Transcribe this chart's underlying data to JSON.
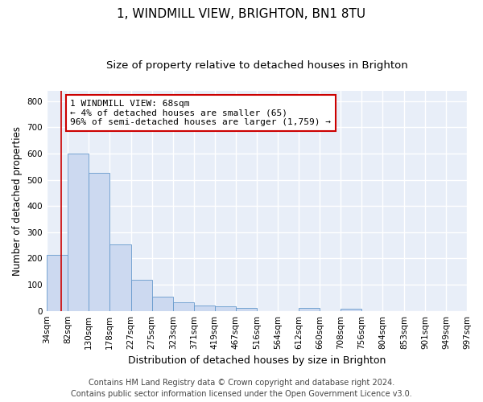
{
  "title": "1, WINDMILL VIEW, BRIGHTON, BN1 8TU",
  "subtitle": "Size of property relative to detached houses in Brighton",
  "xlabel": "Distribution of detached houses by size in Brighton",
  "ylabel": "Number of detached properties",
  "footer_line1": "Contains HM Land Registry data © Crown copyright and database right 2024.",
  "footer_line2": "Contains public sector information licensed under the Open Government Licence v3.0.",
  "bar_color": "#ccd9f0",
  "bar_edge_color": "#6699cc",
  "annotation_line1": "1 WINDMILL VIEW: 68sqm",
  "annotation_line2": "← 4% of detached houses are smaller (65)",
  "annotation_line3": "96% of semi-detached houses are larger (1,759) →",
  "annotation_box_color": "#ffffff",
  "annotation_box_edge_color": "#cc0000",
  "vline_x": 68,
  "vline_color": "#cc0000",
  "bin_edges": [
    34,
    82,
    130,
    178,
    227,
    275,
    323,
    371,
    419,
    467,
    516,
    564,
    612,
    660,
    708,
    756,
    804,
    853,
    901,
    949,
    997
  ],
  "bar_heights": [
    215,
    600,
    525,
    255,
    118,
    53,
    32,
    20,
    16,
    11,
    0,
    0,
    10,
    0,
    8,
    0,
    0,
    0,
    0,
    0
  ],
  "ylim": [
    0,
    840
  ],
  "xlim": [
    34,
    997
  ],
  "background_color": "#e8eef8",
  "grid_color": "#ffffff",
  "title_fontsize": 11,
  "subtitle_fontsize": 9.5,
  "ylabel_fontsize": 8.5,
  "xlabel_fontsize": 9,
  "tick_fontsize": 7.5,
  "footer_fontsize": 7,
  "fig_width": 6.0,
  "fig_height": 5.0,
  "dpi": 100
}
